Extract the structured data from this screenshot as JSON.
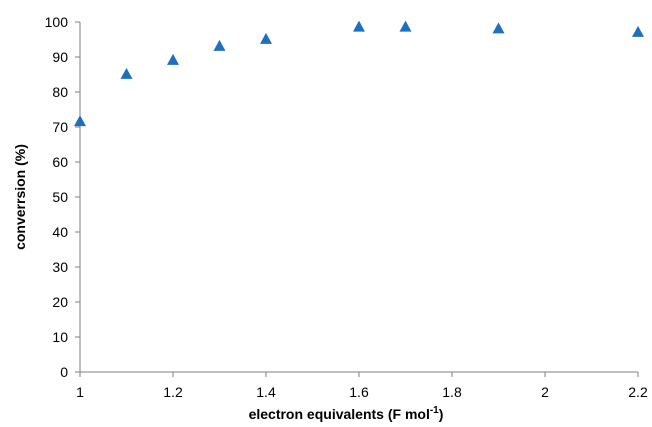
{
  "chart_data": {
    "type": "scatter",
    "title": "",
    "xlabel": "electron equivalents (F mol",
    "xlabel_superscript": "-1",
    "xlabel_suffix": ")",
    "ylabel": "converrsion (%)",
    "xlim": [
      1,
      2.2
    ],
    "ylim": [
      0,
      100
    ],
    "x_ticks": [
      "1",
      "1.2",
      "1.4",
      "1.6",
      "1.8",
      "2",
      "2.2"
    ],
    "y_ticks": [
      "0",
      "10",
      "20",
      "30",
      "40",
      "50",
      "60",
      "70",
      "80",
      "90",
      "100"
    ],
    "grid": false,
    "legend": "none",
    "marker": "triangle",
    "color": "#1f6fbf",
    "series": [
      {
        "x": [
          1.0,
          1.1,
          1.2,
          1.3,
          1.4,
          1.6,
          1.7,
          1.9,
          2.2
        ],
        "y": [
          71.5,
          85,
          89,
          93,
          95,
          98.5,
          98.5,
          98,
          97
        ]
      }
    ]
  }
}
